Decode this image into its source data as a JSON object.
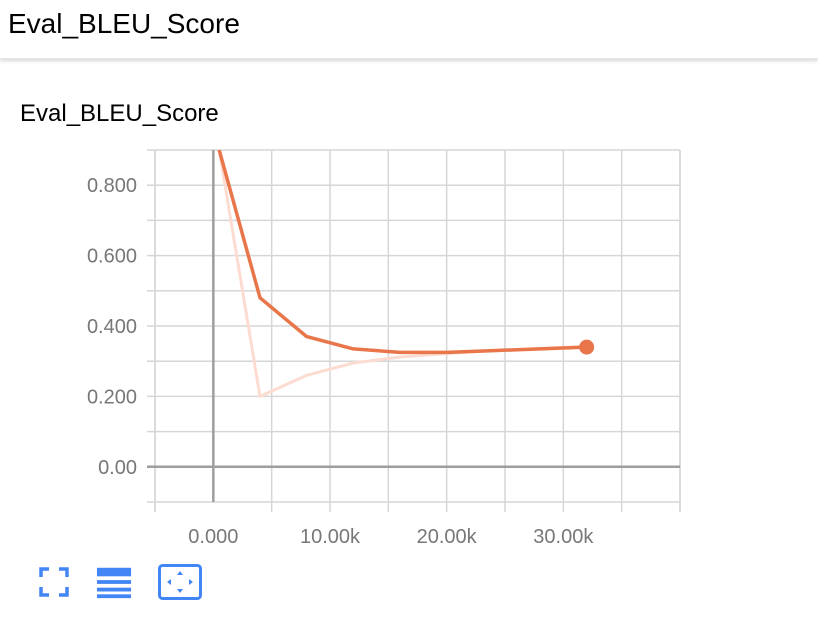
{
  "header": {
    "title": "Eval_BLEU_Score"
  },
  "card": {
    "title": "Eval_BLEU_Score"
  },
  "toolbar": {
    "buttons": [
      {
        "icon": "fullscreen-icon"
      },
      {
        "icon": "toggle-log-scale-icon"
      },
      {
        "icon": "fit-domain-icon"
      }
    ]
  },
  "colors": {
    "accent": "#4285f4",
    "smoothed_line": "#e8764a",
    "raw_line": "#fcdcd0",
    "grid": "#d6d6d6",
    "axis": "#9e9e9e",
    "tick_text": "#777777"
  },
  "chart_data": {
    "type": "line",
    "title": "Eval_BLEU_Score",
    "xlabel": "",
    "ylabel": "",
    "xlim": [
      -5000,
      40000
    ],
    "ylim": [
      -0.1,
      0.9
    ],
    "x_ticks": [
      0,
      10000,
      20000,
      30000
    ],
    "x_tick_labels": [
      "0.000",
      "10.00k",
      "20.00k",
      "30.00k"
    ],
    "y_ticks": [
      0,
      0.2,
      0.4,
      0.6,
      0.8
    ],
    "y_tick_labels": [
      "0.00",
      "0.200",
      "0.400",
      "0.600",
      "0.800"
    ],
    "grid": true,
    "series": [
      {
        "role": "raw",
        "values": [
          [
            500,
            0.9
          ],
          [
            4000,
            0.2
          ],
          [
            8000,
            0.26
          ],
          [
            12000,
            0.295
          ],
          [
            16000,
            0.312
          ],
          [
            20000,
            0.322
          ],
          [
            24000,
            0.33
          ],
          [
            28000,
            0.336
          ],
          [
            32000,
            0.342
          ]
        ]
      },
      {
        "role": "smoothed",
        "values": [
          [
            500,
            0.9
          ],
          [
            4000,
            0.48
          ],
          [
            8000,
            0.37
          ],
          [
            12000,
            0.335
          ],
          [
            16000,
            0.325
          ],
          [
            20000,
            0.325
          ],
          [
            24000,
            0.33
          ],
          [
            28000,
            0.335
          ],
          [
            32000,
            0.34
          ]
        ]
      }
    ]
  }
}
